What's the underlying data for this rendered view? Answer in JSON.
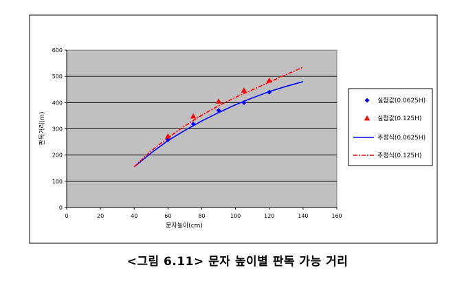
{
  "caption": "<그림 6.11> 문자 높이별 판독 가능 거리",
  "chart_data": {
    "type": "scatter",
    "title": "",
    "xlabel": "문자높이(cm)",
    "ylabel": "판독거리(m)",
    "xlim": [
      0,
      160
    ],
    "ylim": [
      0,
      600
    ],
    "x_ticks": [
      0,
      20,
      40,
      60,
      80,
      100,
      120,
      140,
      160
    ],
    "y_ticks": [
      0,
      100,
      200,
      300,
      400,
      500,
      600
    ],
    "grid": "horizontal",
    "legend_position": "right",
    "plot_background": "#c0c0c0",
    "series": [
      {
        "name": "실험값(0.0625H)",
        "kind": "markers",
        "marker": "diamond",
        "color": "#0000ff",
        "points": [
          [
            60,
            258
          ],
          [
            75,
            318
          ],
          [
            90,
            370
          ],
          [
            105,
            400
          ],
          [
            120,
            440
          ]
        ]
      },
      {
        "name": "실험값(0.125H)",
        "kind": "markers",
        "marker": "triangle",
        "color": "#ff0000",
        "points": [
          [
            60,
            272
          ],
          [
            75,
            348
          ],
          [
            90,
            405
          ],
          [
            105,
            447
          ],
          [
            120,
            485
          ]
        ]
      },
      {
        "name": "추정식(0.0625H)",
        "kind": "line",
        "style": "solid",
        "color": "#0000ff",
        "points": [
          [
            40,
            155
          ],
          [
            50,
            208
          ],
          [
            60,
            255
          ],
          [
            70,
            294
          ],
          [
            80,
            330
          ],
          [
            90,
            362
          ],
          [
            100,
            392
          ],
          [
            110,
            418
          ],
          [
            120,
            442
          ],
          [
            130,
            462
          ],
          [
            140,
            480
          ]
        ]
      },
      {
        "name": "추정식(0.125H)",
        "kind": "line",
        "style": "dashdot",
        "color": "#ff0000",
        "points": [
          [
            40,
            155
          ],
          [
            50,
            216
          ],
          [
            60,
            266
          ],
          [
            70,
            311
          ],
          [
            80,
            352
          ],
          [
            90,
            388
          ],
          [
            100,
            420
          ],
          [
            110,
            449
          ],
          [
            120,
            478
          ],
          [
            130,
            507
          ],
          [
            140,
            535
          ]
        ]
      }
    ]
  }
}
